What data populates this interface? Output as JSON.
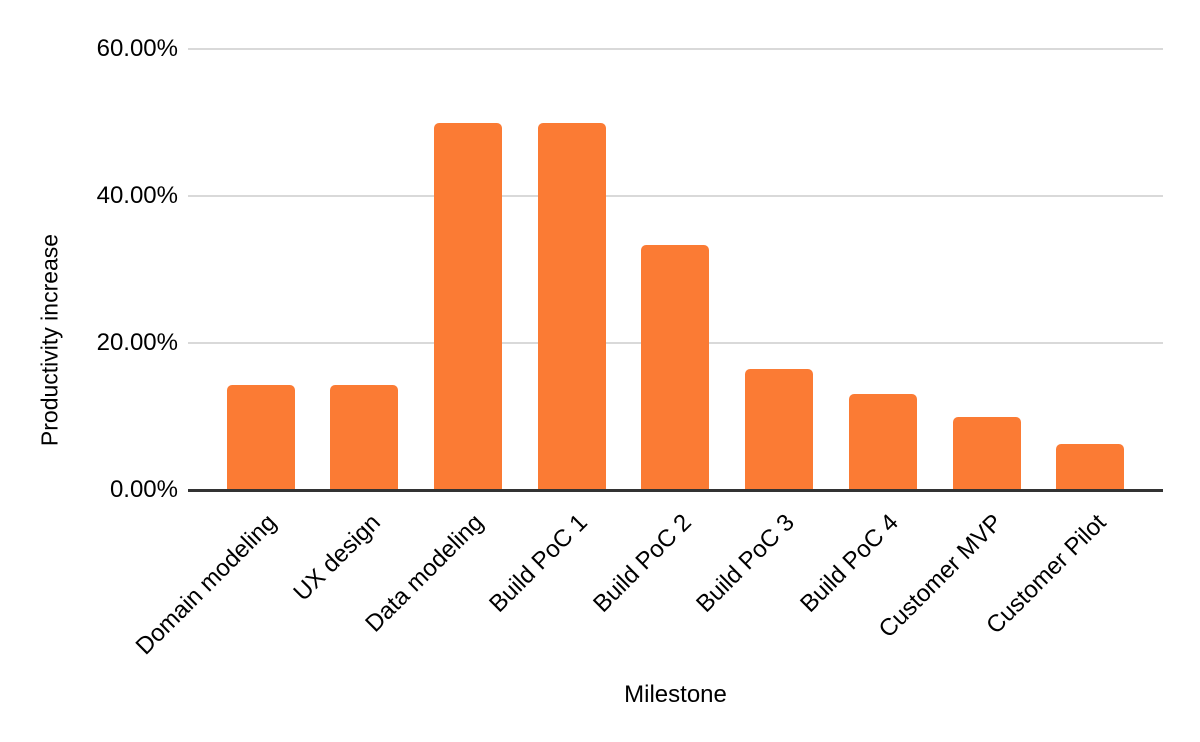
{
  "chart_data": {
    "type": "bar",
    "title": "",
    "xlabel": "Milestone",
    "ylabel": "Productivity increase",
    "categories": [
      "Domain modeling",
      "UX design",
      "Data modeling",
      "Build PoC 1",
      "Build PoC 2",
      "Build PoC 3",
      "Build PoC 4",
      "Customer MVP",
      "Customer Pilot"
    ],
    "values": [
      14.3,
      14.3,
      50.0,
      50.0,
      33.3,
      16.5,
      13.1,
      10.0,
      6.3
    ],
    "ylim": [
      0,
      60
    ],
    "yticks": [
      {
        "value": 0,
        "label": "0.00%"
      },
      {
        "value": 20,
        "label": "20.00%"
      },
      {
        "value": 40,
        "label": "40.00%"
      },
      {
        "value": 60,
        "label": "60.00%"
      }
    ],
    "grid": true,
    "legend": "none",
    "colors": {
      "bar": "#fb7b34",
      "gridline": "#d9d9d9",
      "axis_line": "#333333",
      "text": "#000000",
      "background": "#ffffff"
    }
  }
}
